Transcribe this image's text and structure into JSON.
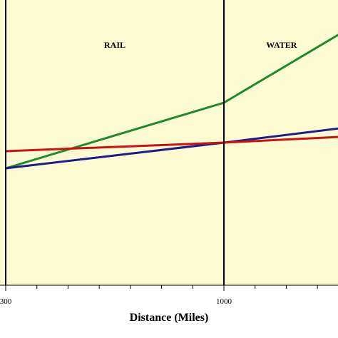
{
  "chart_data": {
    "type": "line",
    "title": "",
    "xlabel": "Distance (Miles)",
    "ylabel": "",
    "xlim": [
      290,
      1370
    ],
    "ylim": [
      0,
      100
    ],
    "grid": false,
    "background_color": "#fdfbd1",
    "regions": [
      {
        "label": "RAIL",
        "from": 300,
        "to": 1000
      },
      {
        "label": "WATER",
        "from": 1000,
        "to": 1370
      }
    ],
    "boundaries": [
      300,
      1000
    ],
    "x_tick_labels": [
      {
        "value": 300,
        "label": "300"
      },
      {
        "value": 1000,
        "label": "1000"
      }
    ],
    "minor_tick_interval": 100,
    "series": [
      {
        "color": "#1f8a2b",
        "x": [
          300,
          1000,
          1370
        ],
        "y": [
          41,
          64,
          88
        ]
      },
      {
        "color": "#1c1c8c",
        "x": [
          300,
          1000,
          1370
        ],
        "y": [
          41,
          50,
          55
        ]
      },
      {
        "color": "#cc1111",
        "x": [
          300,
          1000,
          1370
        ],
        "y": [
          47,
          50,
          52
        ]
      }
    ]
  }
}
